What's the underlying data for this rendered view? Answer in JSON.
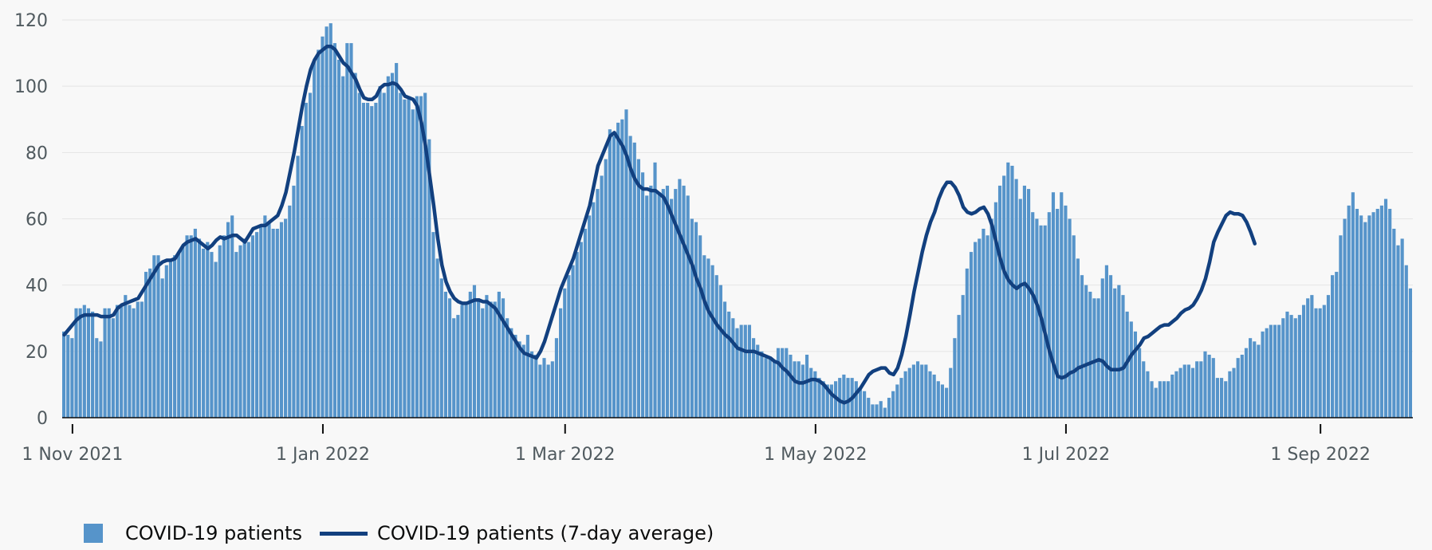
{
  "chart_data": {
    "type": "bar",
    "start_date": "2021-10-30",
    "ylim": [
      0,
      120
    ],
    "yticks": [
      0,
      20,
      40,
      60,
      80,
      100,
      120
    ],
    "xticks": [
      {
        "date": "2021-11-01",
        "label": "1 Nov 2021"
      },
      {
        "date": "2022-01-01",
        "label": "1 Jan 2022"
      },
      {
        "date": "2022-03-01",
        "label": "1 Mar 2022"
      },
      {
        "date": "2022-05-01",
        "label": "1 May 2022"
      },
      {
        "date": "2022-07-01",
        "label": "1 Jul 2022"
      },
      {
        "date": "2022-09-01",
        "label": "1 Sep 2022"
      }
    ],
    "grid": true,
    "legend_position": "bottom-left",
    "series": [
      {
        "name": "COVID-19 patients",
        "kind": "bar",
        "color": "#5694ca",
        "values": [
          26,
          25,
          24,
          33,
          33,
          34,
          33,
          32,
          24,
          23,
          33,
          33,
          30,
          34,
          34,
          37,
          34,
          33,
          35,
          35,
          44,
          45,
          49,
          49,
          42,
          46,
          47,
          49,
          50,
          52,
          55,
          55,
          57,
          54,
          51,
          53,
          50,
          47,
          52,
          55,
          59,
          61,
          50,
          52,
          54,
          53,
          55,
          56,
          58,
          61,
          59,
          57,
          57,
          59,
          60,
          64,
          70,
          79,
          88,
          95,
          98,
          108,
          111,
          115,
          118,
          119,
          113,
          108,
          103,
          113,
          113,
          104,
          98,
          95,
          95,
          94,
          95,
          100,
          98,
          103,
          104,
          107,
          98,
          96,
          97,
          93,
          97,
          97,
          98,
          84,
          56,
          48,
          42,
          38,
          36,
          30,
          31,
          34,
          34,
          38,
          40,
          36,
          33,
          37,
          35,
          35,
          38,
          36,
          30,
          27,
          25,
          23,
          22,
          25,
          20,
          19,
          16,
          18,
          16,
          17,
          24,
          33,
          39,
          43,
          46,
          50,
          53,
          57,
          61,
          65,
          69,
          73,
          78,
          87,
          85,
          89,
          90,
          93,
          85,
          83,
          78,
          74,
          67,
          70,
          77,
          68,
          69,
          70,
          66,
          69,
          72,
          70,
          67,
          60,
          59,
          55,
          49,
          48,
          46,
          43,
          40,
          35,
          32,
          30,
          27,
          28,
          28,
          28,
          24,
          22,
          20,
          18,
          18,
          17,
          21,
          21,
          21,
          19,
          17,
          17,
          16,
          19,
          15,
          14,
          12,
          11,
          10,
          10,
          11,
          12,
          13,
          12,
          12,
          11,
          9,
          8,
          6,
          4,
          4,
          5,
          3,
          6,
          8,
          10,
          12,
          14,
          15,
          16,
          17,
          16,
          16,
          14,
          13,
          11,
          10,
          9,
          15,
          24,
          31,
          37,
          45,
          50,
          53,
          54,
          57,
          55,
          60,
          65,
          70,
          73,
          77,
          76,
          72,
          66,
          70,
          69,
          62,
          60,
          58,
          58,
          62,
          68,
          63,
          68,
          64,
          60,
          55,
          48,
          43,
          40,
          38,
          36,
          36,
          42,
          46,
          43,
          39,
          40,
          37,
          32,
          29,
          26,
          21,
          17,
          14,
          11,
          9,
          11,
          11,
          11,
          13,
          14,
          15,
          16,
          16,
          15,
          17,
          17,
          20,
          19,
          18,
          12,
          12,
          11,
          14,
          15,
          18,
          19,
          21,
          24,
          23,
          22,
          26,
          27,
          28,
          28,
          28,
          30,
          32,
          31,
          30,
          31,
          34,
          36,
          37,
          33,
          33,
          34,
          37,
          43,
          44,
          55,
          60,
          64,
          68,
          63,
          61,
          59,
          61,
          62,
          63,
          64,
          66,
          63,
          57,
          52,
          54,
          46,
          39
        ]
      },
      {
        "name": "COVID-19 patients (7-day average)",
        "kind": "line",
        "color": "#12407f",
        "values": [
          25,
          26.5,
          28,
          29.5,
          30.5,
          31,
          31,
          31,
          31,
          30.5,
          30.5,
          30.5,
          31,
          33,
          34,
          34.5,
          35,
          35.5,
          36,
          38,
          40,
          42,
          44,
          46,
          47,
          47.5,
          47.5,
          48,
          50,
          52,
          53,
          53.5,
          54,
          53,
          52,
          51,
          52,
          53.5,
          54.5,
          54,
          54.5,
          55,
          55,
          54,
          53,
          55,
          57,
          57.5,
          58,
          58,
          59,
          60,
          61,
          64,
          68,
          74,
          80,
          87,
          94,
          100,
          105,
          108,
          110,
          111,
          112,
          112,
          111,
          109,
          107,
          106,
          104,
          102,
          99,
          96.5,
          96,
          96,
          97,
          99.5,
          100.5,
          100.5,
          101,
          100.5,
          99,
          97,
          96.5,
          96,
          94,
          89,
          82,
          73,
          64,
          54,
          46,
          41,
          38,
          36,
          35,
          34.5,
          34.5,
          35,
          35.5,
          35.5,
          35,
          35,
          34,
          33,
          31,
          29,
          27,
          25,
          23,
          21,
          19.5,
          19,
          18.5,
          18,
          20,
          23,
          27,
          31,
          35,
          39,
          42,
          45,
          48,
          52,
          56,
          60,
          64,
          70,
          76,
          79,
          82,
          85,
          86,
          84,
          82,
          79,
          75,
          72,
          70,
          69,
          69,
          68.5,
          68.5,
          67.5,
          66.5,
          64,
          61,
          58,
          55,
          52,
          49,
          46,
          42,
          39,
          35,
          32,
          30,
          28,
          26.5,
          25,
          24,
          22.5,
          21,
          20.5,
          20,
          20,
          20,
          19.5,
          19,
          18.5,
          18,
          17,
          16.5,
          15,
          14,
          12.5,
          11,
          10.5,
          10.5,
          11,
          11.5,
          11.5,
          11,
          10,
          8.5,
          7,
          6,
          5,
          4.5,
          5,
          6,
          7.5,
          9,
          11,
          13,
          14,
          14.5,
          15,
          15,
          13.5,
          13,
          15,
          19,
          24.5,
          31,
          38,
          44,
          50,
          55,
          59,
          62,
          66,
          69,
          71,
          71,
          69.5,
          67,
          63.5,
          62,
          61.5,
          62,
          63,
          63.5,
          61.5,
          58,
          53,
          48,
          44,
          41.5,
          40,
          39,
          40,
          40.5,
          39,
          37,
          34,
          30,
          25,
          20,
          16,
          12.5,
          12,
          12.5,
          13.5,
          14,
          15,
          15.5,
          16,
          16.5,
          17,
          17.5,
          17,
          15.5,
          14.5,
          14.5,
          14.5,
          15,
          17,
          19,
          20.5,
          22,
          24,
          24.5,
          25.5,
          26.5,
          27.5,
          28,
          28,
          29,
          30,
          31.5,
          32.5,
          33,
          34,
          36,
          38.5,
          42,
          47,
          53,
          56,
          58.5,
          61,
          62,
          61.5,
          61.5,
          61,
          59,
          56,
          52.5,
          null,
          null
        ]
      }
    ]
  },
  "legend": {
    "bar_label": "COVID-19 patients",
    "line_label": "COVID-19 patients (7-day average)"
  }
}
